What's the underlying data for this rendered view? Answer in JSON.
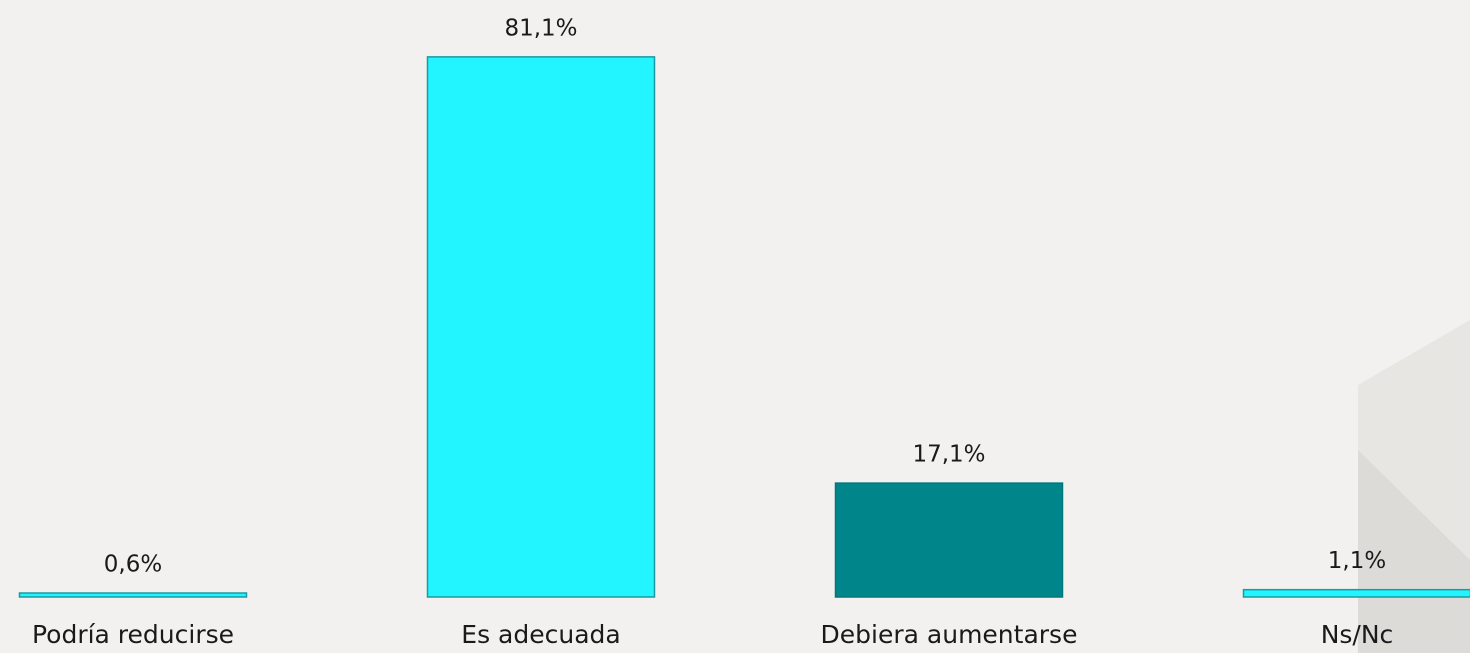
{
  "chart_data": {
    "type": "bar",
    "categories": [
      "Podría reducirse",
      "Es adecuada",
      "Debiera aumentarse",
      "Ns/Nc"
    ],
    "values": [
      0.6,
      81.1,
      17.1,
      1.1
    ],
    "value_labels": [
      "0,6%",
      "81,1%",
      "17,1%",
      "1,1%"
    ],
    "colors": [
      "#22f5ff",
      "#22f5ff",
      "#00868a",
      "#22f5ff"
    ]
  }
}
